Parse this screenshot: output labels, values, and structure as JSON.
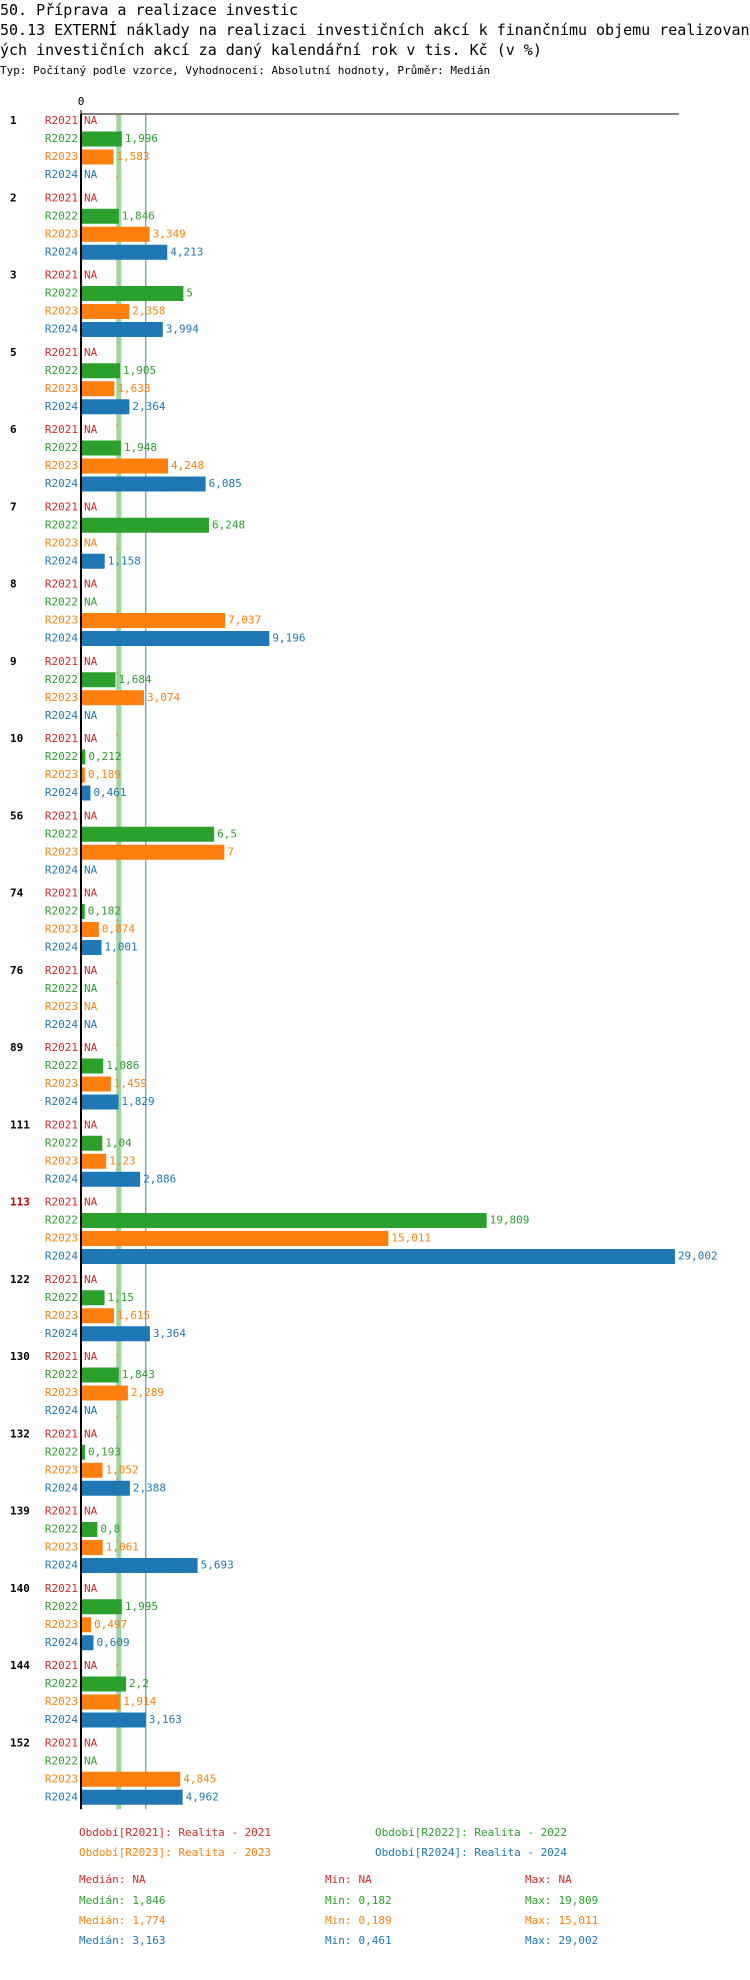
{
  "chart_data": {
    "type": "hbar-grouped",
    "title": "50. Příprava a realizace investic",
    "subtitle": "50.13 EXTERNÍ náklady na realizaci investičních akcí k finančnímu objemu realizovaných investičních akcí za daný kalendářní rok v tis. Kč (v %)",
    "note": "Typ: Počítaný podle vzorce, Vyhodnocení: Absolutní hodnoty, Průměr: Medián",
    "na_label": "NA",
    "categories": [
      "1",
      "2",
      "3",
      "5",
      "6",
      "7",
      "8",
      "9",
      "10",
      "56",
      "74",
      "76",
      "89",
      "111",
      "113",
      "122",
      "130",
      "132",
      "139",
      "140",
      "144",
      "152"
    ],
    "highlighted_categories": [
      "113"
    ],
    "highlight_color": "#cc0000",
    "xlim": [
      0,
      29.2
    ],
    "xticks": [
      0
    ],
    "stat_labels": {
      "median": "Medián:",
      "min": "Min:",
      "max": "Max:"
    },
    "series": [
      {
        "code": "R2021",
        "name": "Období[R2021]: Realita - 2021",
        "color": "#d62728",
        "values": [
          null,
          null,
          null,
          null,
          null,
          null,
          null,
          null,
          null,
          null,
          null,
          null,
          null,
          null,
          null,
          null,
          null,
          null,
          null,
          null,
          null,
          null
        ],
        "value_labels": [
          null,
          null,
          null,
          null,
          null,
          null,
          null,
          null,
          null,
          null,
          null,
          null,
          null,
          null,
          null,
          null,
          null,
          null,
          null,
          null,
          null,
          null
        ],
        "median": {
          "value": null,
          "label": "NA"
        },
        "min": {
          "value": null,
          "label": "NA"
        },
        "max": {
          "value": null,
          "label": "NA"
        }
      },
      {
        "code": "R2022",
        "name": "Období[R2022]: Realita - 2022",
        "color": "#2ca02c",
        "values": [
          1.996,
          1.846,
          5,
          1.905,
          1.948,
          6.248,
          null,
          1.684,
          0.212,
          6.5,
          0.182,
          null,
          1.086,
          1.04,
          19.809,
          1.15,
          1.843,
          0.193,
          0.8,
          1.995,
          2.2,
          null
        ],
        "value_labels": [
          "1,996",
          "1,846",
          "5",
          "1,905",
          "1,948",
          "6,248",
          null,
          "1,684",
          "0,212",
          "6,5",
          "0,182",
          null,
          "1,086",
          "1,04",
          "19,809",
          "1,15",
          "1,843",
          "0,193",
          "0,8",
          "1,995",
          "2,2",
          null
        ],
        "median": {
          "value": 1.846,
          "label": "1,846"
        },
        "min": {
          "value": 0.182,
          "label": "0,182"
        },
        "max": {
          "value": 19.809,
          "label": "19,809"
        }
      },
      {
        "code": "R2023",
        "name": "Období[R2023]: Realita - 2023",
        "color": "#ff7f0e",
        "values": [
          1.583,
          3.349,
          2.358,
          1.633,
          4.248,
          null,
          7.037,
          3.074,
          0.189,
          7,
          0.874,
          null,
          1.459,
          1.23,
          15.011,
          1.615,
          2.289,
          1.052,
          1.061,
          0.497,
          1.914,
          4.845
        ],
        "value_labels": [
          "1,583",
          "3,349",
          "2,358",
          "1,633",
          "4,248",
          null,
          "7,037",
          "3,074",
          "0,189",
          "7",
          "0,874",
          null,
          "1,459",
          "1,23",
          "15,011",
          "1,615",
          "2,289",
          "1,052",
          "1,061",
          "0,497",
          "1,914",
          "4,845"
        ],
        "median": {
          "value": 1.774,
          "label": "1,774"
        },
        "min": {
          "value": 0.189,
          "label": "0,189"
        },
        "max": {
          "value": 15.011,
          "label": "15,011"
        }
      },
      {
        "code": "R2024",
        "name": "Období[R2024]: Realita - 2024",
        "color": "#1f77b4",
        "values": [
          null,
          4.213,
          3.994,
          2.364,
          6.085,
          1.158,
          9.196,
          null,
          0.461,
          null,
          1.001,
          null,
          1.829,
          2.886,
          29.002,
          3.364,
          null,
          2.388,
          5.693,
          0.609,
          3.163,
          4.962
        ],
        "value_labels": [
          null,
          "4,213",
          "3,994",
          "2,364",
          "6,085",
          "1,158",
          "9,196",
          null,
          "0,461",
          null,
          "1,001",
          null,
          "1,829",
          "2,886",
          "29,002",
          "3,364",
          null,
          "2,388",
          "5,693",
          "0,609",
          "3,163",
          "4,962"
        ],
        "median": {
          "value": 3.163,
          "label": "3,163"
        },
        "min": {
          "value": 0.461,
          "label": "0,461"
        },
        "max": {
          "value": 29.002,
          "label": "29,002"
        }
      }
    ]
  }
}
